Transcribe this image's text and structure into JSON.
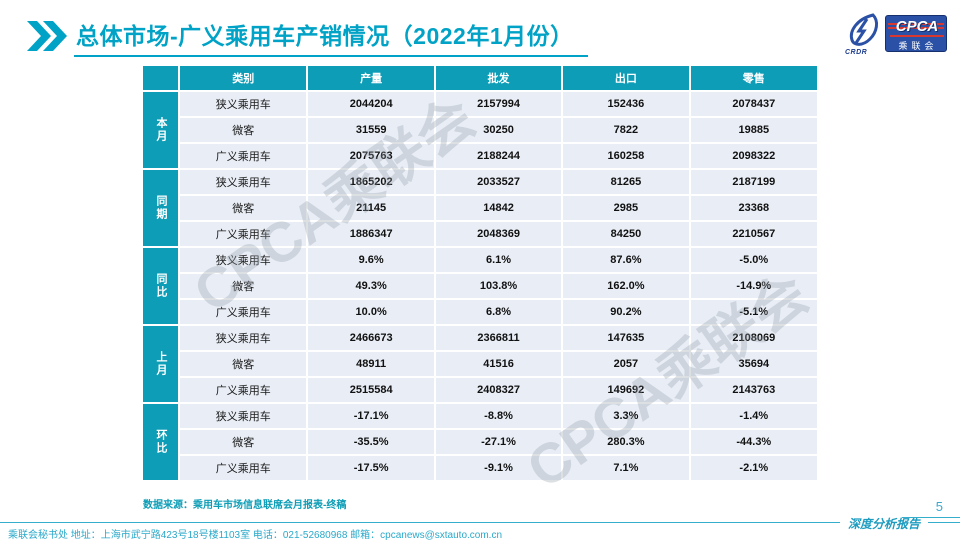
{
  "title": "总体市场-广义乘用车产销情况（2022年1月份）",
  "logo": {
    "cra_text": "CRDR",
    "cpca_text": "CPCA",
    "sub_text": "乘联会"
  },
  "watermark_text": "CPCA乘联会",
  "table": {
    "corner": "",
    "headers": [
      "类别",
      "产量",
      "批发",
      "出口",
      "零售"
    ],
    "groups": [
      {
        "label": "本月",
        "rows": [
          {
            "category": "狭义乘用车",
            "values": [
              "2044204",
              "2157994",
              "152436",
              "2078437"
            ]
          },
          {
            "category": "微客",
            "values": [
              "31559",
              "30250",
              "7822",
              "19885"
            ]
          },
          {
            "category": "广义乘用车",
            "values": [
              "2075763",
              "2188244",
              "160258",
              "2098322"
            ]
          }
        ]
      },
      {
        "label": "同期",
        "rows": [
          {
            "category": "狭义乘用车",
            "values": [
              "1865202",
              "2033527",
              "81265",
              "2187199"
            ]
          },
          {
            "category": "微客",
            "values": [
              "21145",
              "14842",
              "2985",
              "23368"
            ]
          },
          {
            "category": "广义乘用车",
            "values": [
              "1886347",
              "2048369",
              "84250",
              "2210567"
            ]
          }
        ]
      },
      {
        "label": "同比",
        "rows": [
          {
            "category": "狭义乘用车",
            "values": [
              "9.6%",
              "6.1%",
              "87.6%",
              "-5.0%"
            ]
          },
          {
            "category": "微客",
            "values": [
              "49.3%",
              "103.8%",
              "162.0%",
              "-14.9%"
            ]
          },
          {
            "category": "广义乘用车",
            "values": [
              "10.0%",
              "6.8%",
              "90.2%",
              "-5.1%"
            ]
          }
        ]
      },
      {
        "label": "上月",
        "rows": [
          {
            "category": "狭义乘用车",
            "values": [
              "2466673",
              "2366811",
              "147635",
              "2108069"
            ]
          },
          {
            "category": "微客",
            "values": [
              "48911",
              "41516",
              "2057",
              "35694"
            ]
          },
          {
            "category": "广义乘用车",
            "values": [
              "2515584",
              "2408327",
              "149692",
              "2143763"
            ]
          }
        ]
      },
      {
        "label": "环比",
        "rows": [
          {
            "category": "狭义乘用车",
            "values": [
              "-17.1%",
              "-8.8%",
              "3.3%",
              "-1.4%"
            ]
          },
          {
            "category": "微客",
            "values": [
              "-35.5%",
              "-27.1%",
              "280.3%",
              "-44.3%"
            ]
          },
          {
            "category": "广义乘用车",
            "values": [
              "-17.5%",
              "-9.1%",
              "7.1%",
              "-2.1%"
            ]
          }
        ]
      }
    ]
  },
  "source_note": "数据来源：乘用车市场信息联席会月报表-终稿",
  "footer": {
    "left_text": "乘联会秘书处   地址：上海市武宁路423号18号楼1103室  电话：021-52680968  邮箱：cpcanews@sxtauto.com.cn",
    "report_label": "深度分析报告",
    "page_number": "5"
  },
  "colors": {
    "teal_header": "#0d9db6",
    "title_teal": "#00a2c6",
    "row_background": "#e9eef6",
    "logo_navy": "#2a51a5",
    "logo_red": "#d8372f"
  }
}
